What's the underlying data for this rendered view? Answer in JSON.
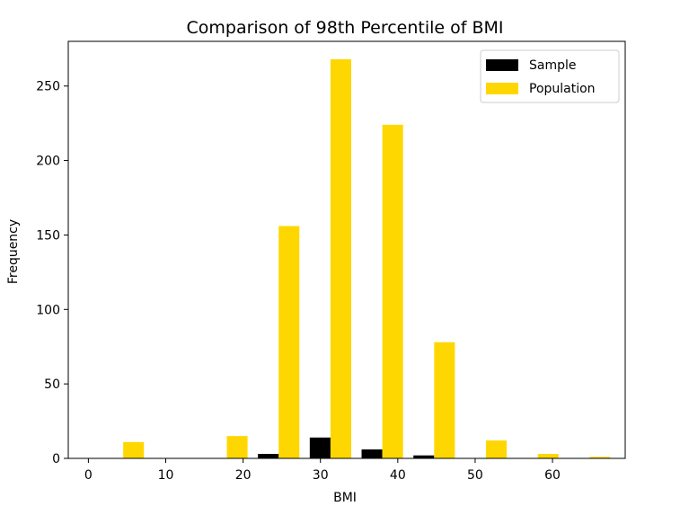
{
  "chart_data": {
    "type": "bar",
    "title": "Comparison of 98th Percentile of BMI",
    "xlabel": "BMI",
    "ylabel": "Frequency",
    "xlim": [
      -2.6,
      69.4
    ],
    "ylim": [
      0,
      280
    ],
    "xticks": [
      0,
      10,
      20,
      30,
      40,
      50,
      60
    ],
    "yticks": [
      0,
      50,
      100,
      150,
      200,
      250
    ],
    "bin_width": 6.7,
    "bar_width": 2.68,
    "bin_centers": [
      4.5,
      11.2,
      17.9,
      24.6,
      31.3,
      38.0,
      44.7,
      51.4,
      58.1,
      64.8
    ],
    "legend_position": "upper right",
    "series": [
      {
        "name": "Sample",
        "color": "#000000",
        "offset": -1.34,
        "values": [
          0,
          0,
          0,
          3,
          14,
          6,
          2,
          0,
          0,
          0
        ]
      },
      {
        "name": "Population",
        "color": "#FFD700",
        "offset": 1.34,
        "values": [
          11,
          0,
          15,
          156,
          268,
          224,
          78,
          12,
          3,
          1
        ]
      }
    ]
  }
}
